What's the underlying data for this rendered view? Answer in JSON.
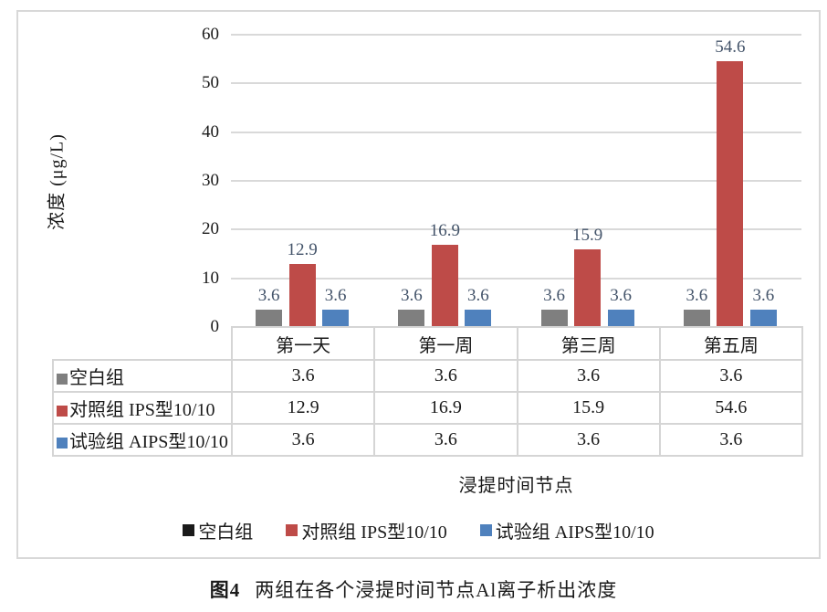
{
  "figure": {
    "caption_label": "图4",
    "caption_text": "两组在各个浸提时间节点Al离子析出浓度"
  },
  "chart_data": {
    "type": "bar",
    "categories": [
      "第一天",
      "第一周",
      "第三周",
      "第五周"
    ],
    "series": [
      {
        "name": "空白组",
        "values": [
          3.6,
          3.6,
          3.6,
          3.6
        ],
        "color": "#7F7F7F",
        "legend_color": "#1A1A1A"
      },
      {
        "name": "对照组 IPS型10/10",
        "values": [
          12.9,
          16.9,
          15.9,
          54.6
        ],
        "color": "#BE4B48",
        "legend_color": "#BE4B48"
      },
      {
        "name": "试验组 AIPS型10/10",
        "values": [
          3.6,
          3.6,
          3.6,
          3.6
        ],
        "color": "#4F81BD",
        "legend_color": "#4F81BD"
      }
    ],
    "ylabel": "浓度 (μg/L)",
    "xlabel": "浸提时间节点",
    "ylim": [
      0,
      60
    ],
    "yticks": [
      0,
      10,
      20,
      30,
      40,
      50,
      60
    ],
    "grid": true,
    "legend_position": "bottom",
    "show_data_table": true,
    "data_label_color": "#44546A",
    "gridline_color": "#D9D9D9",
    "table_border_color": "#D5D5D5"
  }
}
